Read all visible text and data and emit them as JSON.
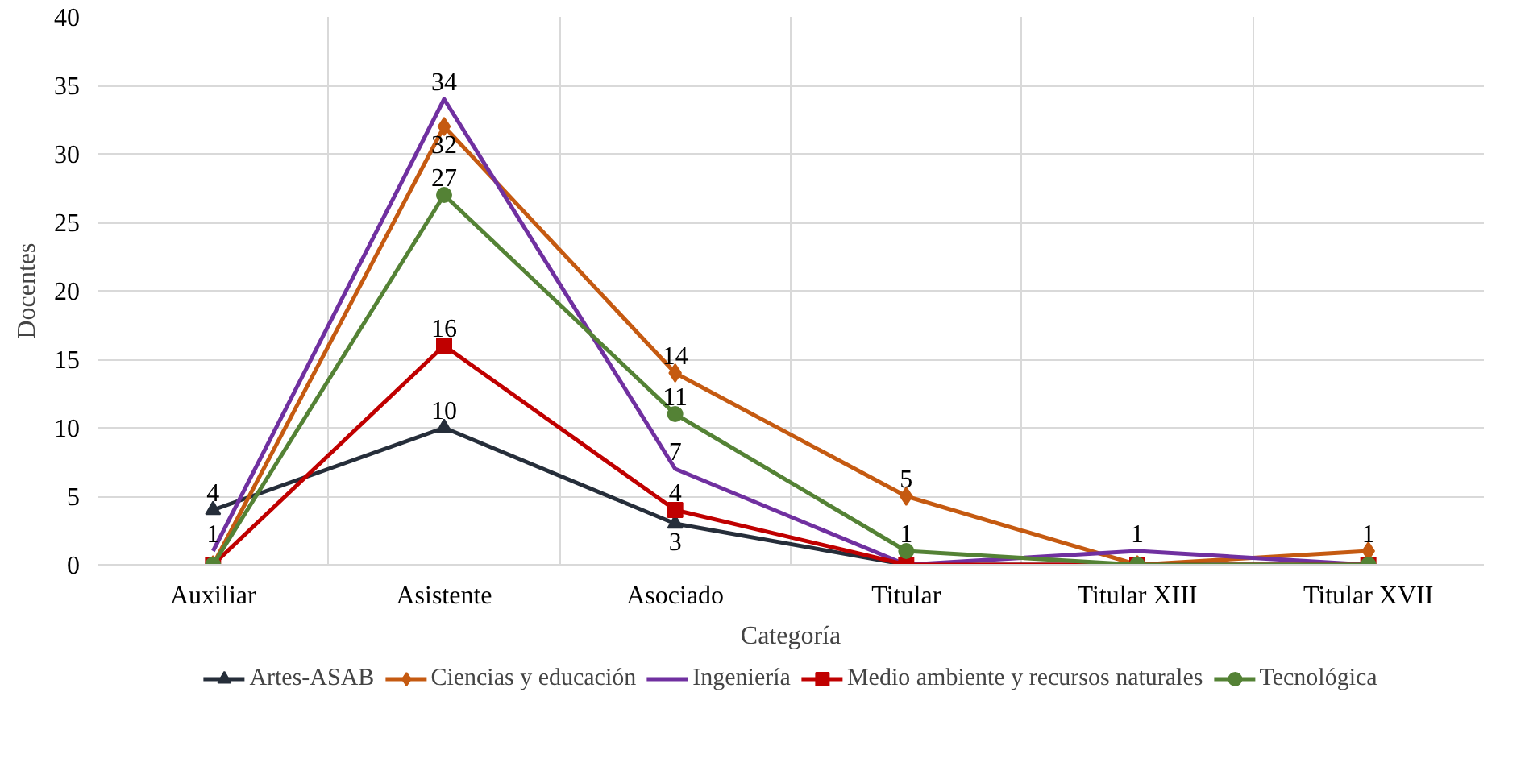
{
  "chart_data": {
    "type": "line",
    "xlabel": "Categoría",
    "ylabel": "Docentes",
    "categories": [
      "Auxiliar",
      "Asistente",
      "Asociado",
      "Titular",
      "Titular XIII",
      "Titular XVII"
    ],
    "ylim": [
      0,
      40
    ],
    "yticks": [
      0,
      5,
      10,
      15,
      20,
      25,
      30,
      35,
      40
    ],
    "grid": true,
    "legend": "bottom",
    "series": [
      {
        "name": "Artes-ASAB",
        "color": "#262e3a",
        "marker": "triangle",
        "values": [
          4,
          10,
          3,
          0,
          0,
          0
        ],
        "value_labels": [
          "4",
          "10",
          "3",
          null,
          null,
          null
        ]
      },
      {
        "name": "Ciencias y educación",
        "color": "#c55a11",
        "marker": "diamond",
        "values": [
          0,
          32,
          14,
          5,
          0,
          1
        ],
        "value_labels": [
          null,
          "32",
          "14",
          "5",
          null,
          "1"
        ]
      },
      {
        "name": "Ingeniería",
        "color": "#7030a0",
        "values": [
          1,
          34,
          7,
          0,
          1,
          0
        ],
        "value_labels": [
          "1",
          "34",
          "7",
          null,
          "1",
          null
        ]
      },
      {
        "name": "Medio ambiente y recursos naturales",
        "color": "#c00000",
        "marker": "square",
        "values": [
          0,
          16,
          4,
          0,
          0,
          0
        ],
        "value_labels": [
          null,
          "16",
          "4",
          null,
          null,
          null
        ]
      },
      {
        "name": "Tecnológica",
        "color": "#548235",
        "marker": "circle",
        "values": [
          0,
          27,
          11,
          1,
          0,
          0
        ],
        "value_labels": [
          null,
          "27",
          "11",
          "1",
          null,
          null
        ]
      }
    ]
  }
}
